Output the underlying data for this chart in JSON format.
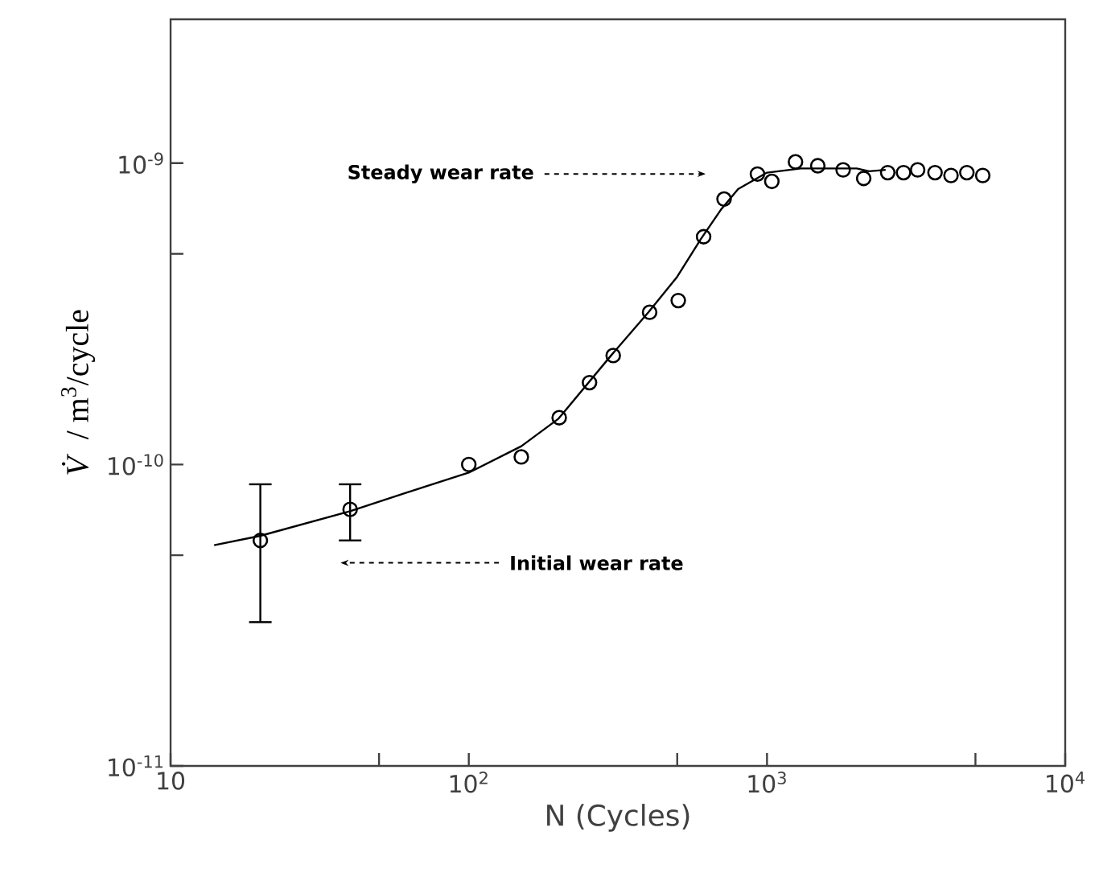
{
  "chart_data": {
    "type": "scatter",
    "xlabel": "N (Cycles)",
    "ylabel": "*V̇* / m$^{3}$/cycle",
    "log": "xy",
    "marker": "circle",
    "xlim": [
      10,
      10000
    ],
    "ylim": [
      1e-11,
      3e-09
    ],
    "xticks": [
      {
        "value": 10,
        "label": "10"
      },
      {
        "value": 50,
        "label": null
      },
      {
        "value": 100,
        "label": "10$^{2}$"
      },
      {
        "value": 500,
        "label": null
      },
      {
        "value": 1000,
        "label": "10$^{3}$"
      },
      {
        "value": 5000,
        "label": null
      },
      {
        "value": 10000,
        "label": "10$^{4}$"
      }
    ],
    "yticks": [
      {
        "value": 1e-11,
        "label": "10$^{-11}$"
      },
      {
        "value": 5e-11,
        "label": null
      },
      {
        "value": 1e-10,
        "label": "10$^{-10}$"
      },
      {
        "value": 5e-10,
        "label": null
      },
      {
        "value": 1e-09,
        "label": "10$^{-9}$"
      }
    ],
    "series": [
      {
        "color": "#000000",
        "x": [
          20,
          40,
          100,
          150,
          201,
          254,
          305,
          404,
          504,
          613,
          718,
          929,
          1038,
          1246,
          1480,
          1800,
          2110,
          2540,
          2870,
          3200,
          3660,
          4140,
          4680,
          5290
        ],
        "values": [
          5.6e-11,
          7.1e-11,
          1e-10,
          1.06e-10,
          1.43e-10,
          1.87e-10,
          2.3e-10,
          3.2e-10,
          3.5e-10,
          5.7e-10,
          7.6e-10,
          9.2e-10,
          8.7e-10,
          1.01e-09,
          9.8e-10,
          9.5e-10,
          8.9e-10,
          9.3e-10,
          9.3e-10,
          9.5e-10,
          9.3e-10,
          9.1e-10,
          9.3e-10,
          9.1e-10
        ],
        "errors": [
          [
            3e-11,
            8.6e-11
          ],
          [
            5.6e-11,
            8.6e-11
          ],
          null,
          null,
          null,
          null,
          null,
          null,
          null,
          null,
          null,
          null,
          null,
          null,
          null,
          null,
          null,
          null,
          null,
          null,
          null,
          null,
          null,
          null
        ]
      },
      {
        "type": "line",
        "color": "#000000",
        "marker": "none",
        "x": [
          14,
          20,
          40,
          70,
          100,
          150,
          200,
          300,
          400,
          500,
          600,
          700,
          800,
          1000,
          1300,
          2000,
          2200,
          2500
        ],
        "values": [
          5.4e-11,
          5.8e-11,
          7e-11,
          8.4e-11,
          9.4e-11,
          1.15e-10,
          1.42e-10,
          2.3e-10,
          3.2e-10,
          4.2e-10,
          5.6e-10,
          7e-10,
          8.2e-10,
          9.3e-10,
          9.6e-10,
          9.6e-10,
          9.4e-10,
          9.5e-10
        ]
      }
    ],
    "annotations": [
      "Steady wear rate",
      "Initial wear rate"
    ]
  }
}
